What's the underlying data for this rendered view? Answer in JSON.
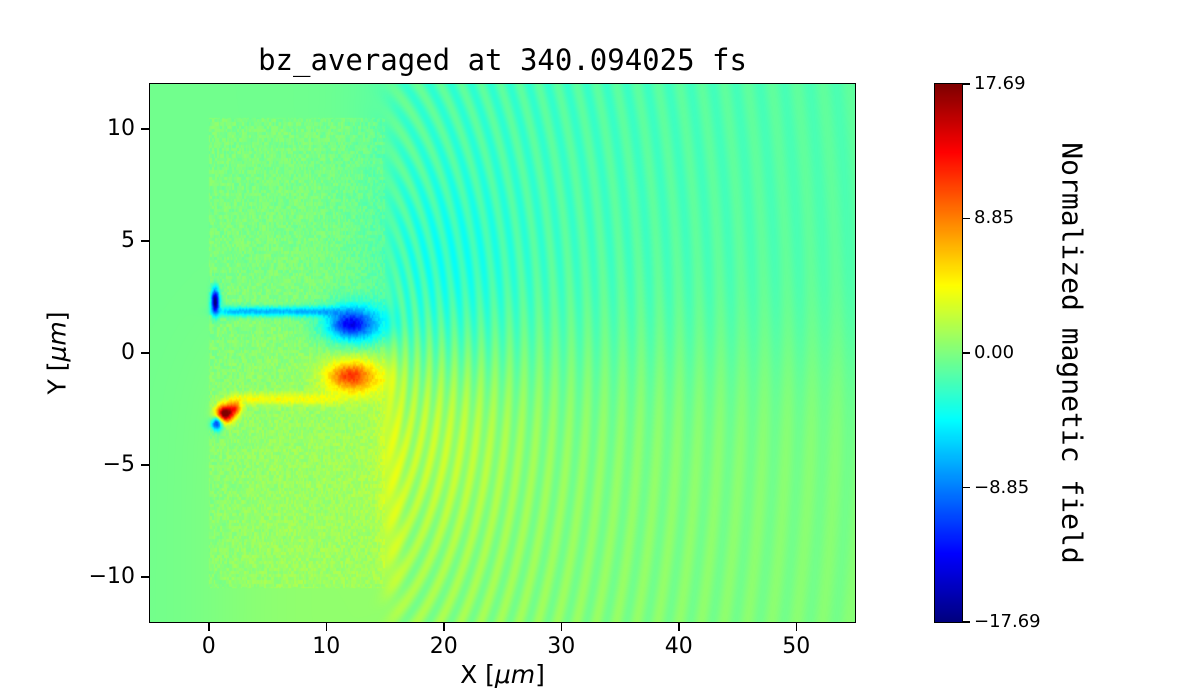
{
  "figure": {
    "background": "#ffffff"
  },
  "chart_data": {
    "type": "heatmap",
    "title": "bz_averaged at 340.094025 fs",
    "xlabel": "X [μm]",
    "xlabel_parts": {
      "prefix": "X [",
      "italic": "μm",
      "suffix": "]"
    },
    "ylabel": "Y [μm]",
    "ylabel_parts": {
      "prefix": "Y [",
      "italic": "μm",
      "suffix": "]"
    },
    "x_range": [
      -5,
      55
    ],
    "y_range": [
      -12,
      12
    ],
    "x_ticks": [
      {
        "v": 0,
        "label": "0"
      },
      {
        "v": 10,
        "label": "10"
      },
      {
        "v": 20,
        "label": "20"
      },
      {
        "v": 30,
        "label": "30"
      },
      {
        "v": 40,
        "label": "40"
      },
      {
        "v": 50,
        "label": "50"
      }
    ],
    "y_ticks": [
      {
        "v": 10,
        "label": "10"
      },
      {
        "v": 5,
        "label": "5"
      },
      {
        "v": 0,
        "label": "0"
      },
      {
        "v": -5,
        "label": "−5"
      },
      {
        "v": -10,
        "label": "−10"
      }
    ],
    "colormap": "jet",
    "value_range": [
      -17.69,
      17.69
    ],
    "colorbar": {
      "label": "Normalized magnetic field",
      "ticks": [
        {
          "v": 17.69,
          "label": "17.69"
        },
        {
          "v": 8.85,
          "label": "8.85"
        },
        {
          "v": 0,
          "label": "0.00"
        },
        {
          "v": -8.85,
          "label": "−8.85"
        },
        {
          "v": -17.69,
          "label": "−17.69"
        }
      ]
    },
    "features": {
      "background_value": -0.5,
      "target_block": {
        "x": [
          0,
          15
        ],
        "y": [
          -10.5,
          10.5
        ],
        "value_offset": 0.4,
        "noise": 0.8
      },
      "ambient": {
        "upper_right_teal": -1.5,
        "lower_positive": 1.2
      },
      "edge_strip": {
        "x": 15.6,
        "width": 1.0,
        "value": 1.8
      },
      "wake_ripples": {
        "center": [
          11,
          0
        ],
        "y_squash": 0.85,
        "wavelength0": 0.85,
        "chirp": 0.012,
        "amplitude": 1.6,
        "decay": 30
      },
      "channels": [
        {
          "name": "upper-electron-channel",
          "y": 1.85,
          "x": [
            1.0,
            10.5
          ],
          "width": 0.22,
          "value": -7
        },
        {
          "name": "lower-electron-channel",
          "y": -2.05,
          "x": [
            1.6,
            10.5
          ],
          "width": 0.26,
          "value": 3.5
        }
      ],
      "blobs": [
        {
          "name": "negative-field-lobe",
          "cx": 12.4,
          "cy": 1.3,
          "rx": 2.6,
          "ry": 0.85,
          "value": -10
        },
        {
          "name": "negative-field-core",
          "cx": 11.9,
          "cy": 1.25,
          "rx": 1.3,
          "ry": 0.45,
          "value": -4
        },
        {
          "name": "positive-field-lobe",
          "cx": 12.3,
          "cy": -1.05,
          "rx": 2.4,
          "ry": 0.8,
          "value": 8.5
        },
        {
          "name": "positive-field-core",
          "cx": 11.9,
          "cy": -1.0,
          "rx": 1.3,
          "ry": 0.4,
          "value": 2.5
        },
        {
          "name": "front-negative-spot",
          "cx": 0.55,
          "cy": 2.3,
          "rx": 0.35,
          "ry": 0.55,
          "value": -18
        },
        {
          "name": "front-positive-spot",
          "cx": 1.4,
          "cy": -2.7,
          "rx": 0.75,
          "ry": 0.38,
          "value": 19
        },
        {
          "name": "front-positive-spot-tail",
          "cx": 2.3,
          "cy": -2.45,
          "rx": 0.5,
          "ry": 0.3,
          "value": 8
        },
        {
          "name": "front-negative-spot-lower",
          "cx": 0.7,
          "cy": -3.15,
          "rx": 0.45,
          "ry": 0.3,
          "value": -13
        },
        {
          "name": "wake-teal-region",
          "cx": 20,
          "cy": 3.2,
          "rx": 6,
          "ry": 4.5,
          "value": -1.6
        },
        {
          "name": "wake-yellow-region",
          "cx": 19.5,
          "cy": -3.2,
          "rx": 6,
          "ry": 4.5,
          "value": 1.5
        }
      ]
    }
  }
}
